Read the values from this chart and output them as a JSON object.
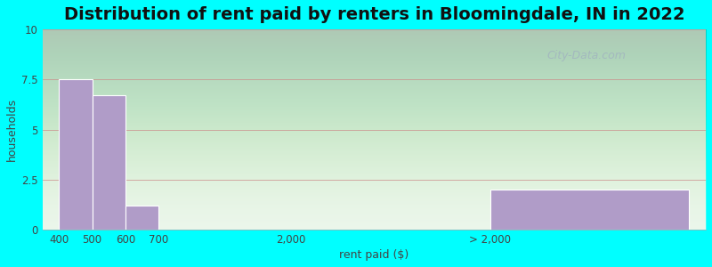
{
  "title": "Distribution of rent paid by renters in Bloomingdale, IN in 2022",
  "xlabel": "rent paid ($)",
  "ylabel": "households",
  "tick_labels": [
    "400",
    "500",
    "600",
    "700",
    "2,000",
    "> 2,000"
  ],
  "tick_positions": [
    0,
    1,
    2,
    3,
    7,
    13
  ],
  "bar_lefts": [
    0,
    1,
    2,
    3,
    13
  ],
  "bar_widths": [
    1,
    1,
    1,
    4,
    6
  ],
  "bar_heights": [
    7.5,
    6.7,
    1.2,
    0.0,
    2.0
  ],
  "bar_color": "#b09cc8",
  "background_color": "#00ffff",
  "ylim": [
    0,
    10
  ],
  "yticks": [
    0,
    2.5,
    5,
    7.5,
    10
  ],
  "xlim": [
    -0.5,
    19.5
  ],
  "title_fontsize": 14,
  "axis_label_fontsize": 9,
  "tick_fontsize": 8.5,
  "watermark_text": "City-Data.com"
}
